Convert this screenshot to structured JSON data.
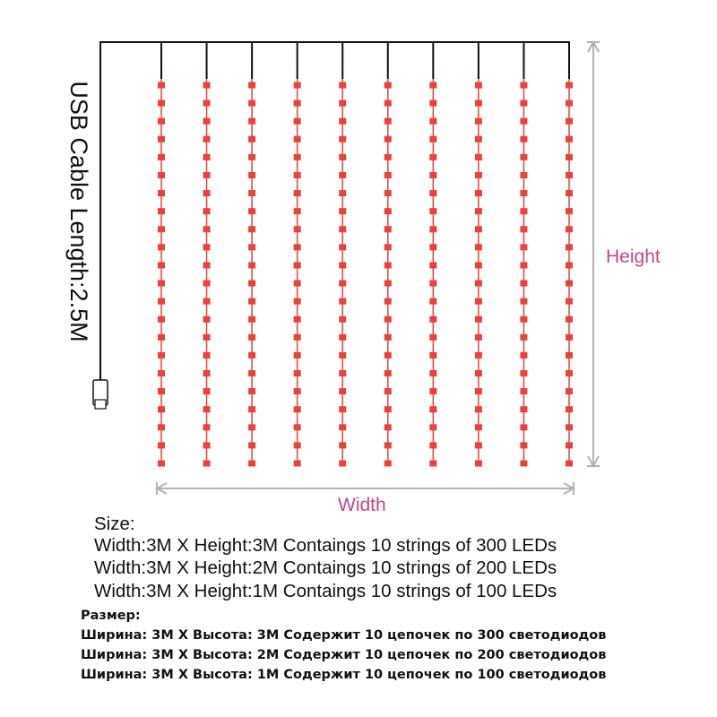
{
  "diagram": {
    "cable_label": "USB Cable Length:2.5M",
    "height_label": "Height",
    "width_label": "Width",
    "string_count": 10,
    "leds_per_string_shown": 22,
    "colors": {
      "led": "#e8413e",
      "wire": "#111111",
      "dimension": "#b3b3b3",
      "dimension_text": "#c0478a"
    },
    "icons": [
      "usb-plug-icon",
      "height-arrow-icon",
      "width-arrow-icon"
    ]
  },
  "specs_en": {
    "heading": "Size:",
    "lines": [
      "Width:3M X Height:3M  Contaings 10 strings of 300 LEDs",
      "Width:3M X Height:2M  Contaings 10 strings of 200 LEDs",
      "Width:3M X Height:1M  Contaings 10 strings of 100 LEDs"
    ]
  },
  "specs_ru": {
    "heading": "Размер:",
    "lines": [
      "Ширина: 3M X Высота: 3M Содержит 10 цепочек по 300 светодиодов",
      "Ширина: 3M X Высота: 2M Содержит 10 цепочек по 200 светодиодов",
      "Ширина: 3M X Высота: 1M Содержит 10 цепочек по 100 светодиодов"
    ]
  }
}
